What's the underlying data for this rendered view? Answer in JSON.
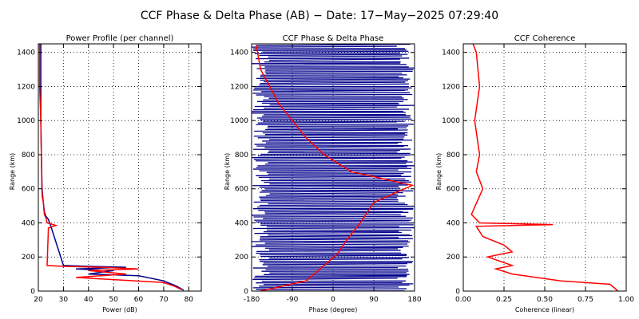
{
  "figure": {
    "title": "CCF Phase & Delta Phase (AB) − Date: 17−May−2025 07:29:40"
  },
  "colors": {
    "blue": "#00008b",
    "red": "#ff0000"
  },
  "chart_data": [
    {
      "type": "line",
      "title": "Power Profile (per channel)",
      "xlabel": "Power (dB)",
      "ylabel": "Range (km)",
      "xlim": [
        20,
        85
      ],
      "ylim": [
        0,
        1450
      ],
      "xticks": [
        20,
        30,
        40,
        50,
        60,
        70,
        80
      ],
      "yticks": [
        0,
        200,
        400,
        600,
        800,
        1000,
        1200,
        1400
      ],
      "grid": true,
      "series": [
        {
          "color": "blue",
          "x": [
            21,
            21,
            21,
            21.2,
            21.5,
            21.8,
            22,
            22.3,
            22.5,
            23,
            24,
            24.5,
            25,
            30,
            40,
            55,
            35,
            50,
            40,
            60,
            70,
            75,
            78
          ],
          "y": [
            1450,
            1200,
            1000,
            800,
            600,
            550,
            520,
            480,
            460,
            440,
            420,
            400,
            380,
            150,
            145,
            140,
            130,
            120,
            100,
            90,
            60,
            30,
            5
          ]
        },
        {
          "color": "red",
          "x": [
            20.5,
            20.5,
            21,
            21.2,
            21.4,
            21.6,
            22,
            22.2,
            22.4,
            23,
            23.5,
            27,
            24,
            23.5,
            30,
            45,
            60,
            40,
            55,
            35,
            70,
            74,
            77
          ],
          "y": [
            1450,
            1200,
            1000,
            800,
            600,
            550,
            520,
            480,
            450,
            430,
            400,
            385,
            370,
            150,
            145,
            140,
            130,
            120,
            100,
            80,
            50,
            30,
            10
          ]
        }
      ]
    },
    {
      "type": "line",
      "title": "CCF Phase & Delta Phase",
      "xlabel": "Phase (degree)",
      "ylabel": "Range (km)",
      "xlim": [
        -180,
        180
      ],
      "ylim": [
        0,
        1450
      ],
      "xticks": [
        -180,
        -90,
        0,
        90,
        180
      ],
      "yticks": [
        0,
        200,
        400,
        600,
        800,
        1000,
        1200,
        1400
      ],
      "grid": true,
      "series": [
        {
          "color": "blue",
          "x": [
            -180,
            180
          ],
          "y": [
            0,
            1450
          ],
          "note_style": "dense_wrapped"
        },
        {
          "color": "red",
          "x": [
            -160,
            -60,
            -20,
            10,
            30,
            60,
            90,
            175,
            40,
            -20,
            -60,
            -120,
            -160,
            -170
          ],
          "y": [
            0,
            60,
            150,
            220,
            300,
            400,
            520,
            620,
            700,
            800,
            900,
            1100,
            1300,
            1440
          ]
        }
      ]
    },
    {
      "type": "line",
      "title": "CCF Coherence",
      "xlabel": "Coherence (linear)",
      "ylabel": "Range (km)",
      "xlim": [
        0,
        1
      ],
      "ylim": [
        0,
        1450
      ],
      "xticks": [
        "0.00",
        "0.25",
        "0.50",
        "0.75",
        "1.00"
      ],
      "yticks": [
        0,
        200,
        400,
        600,
        800,
        1000,
        1200,
        1400
      ],
      "grid": true,
      "series": [
        {
          "color": "red",
          "x": [
            0.95,
            0.9,
            0.6,
            0.3,
            0.2,
            0.3,
            0.15,
            0.3,
            0.25,
            0.12,
            0.08,
            0.55,
            0.1,
            0.05,
            0.12,
            0.08,
            0.1,
            0.07,
            0.1,
            0.08,
            0.06
          ],
          "y": [
            0,
            40,
            60,
            100,
            130,
            150,
            200,
            230,
            270,
            320,
            380,
            390,
            400,
            450,
            600,
            700,
            800,
            1000,
            1200,
            1400,
            1450
          ]
        }
      ]
    }
  ]
}
